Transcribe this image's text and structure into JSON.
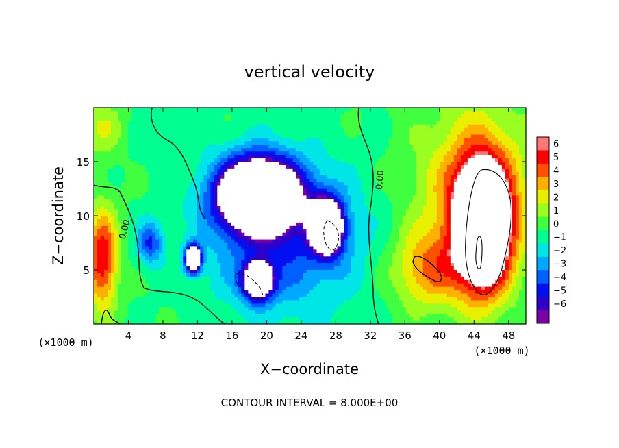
{
  "chart_data": {
    "type": "heatmap",
    "title": "vertical velocity",
    "xlabel": "X−coordinate",
    "ylabel": "Z−coordinate",
    "x_unit_label": "(×1000 m)",
    "x_unit_label_left": "(×1000 m)",
    "xlim": [
      0,
      50
    ],
    "ylim": [
      0,
      20
    ],
    "x_ticks": [
      4,
      8,
      12,
      16,
      20,
      24,
      28,
      32,
      36,
      40,
      44,
      48
    ],
    "y_ticks": [
      5,
      10,
      15
    ],
    "colorbar": {
      "levels": [
        6,
        5,
        4,
        3,
        2,
        1,
        0,
        -1,
        -2,
        -3,
        -4,
        -5,
        -6
      ],
      "labels": [
        "6",
        "5",
        "4",
        "3",
        "2",
        "1",
        "0",
        "−1",
        "−2",
        "−3",
        "−4",
        "−5",
        "−6"
      ],
      "range": [
        -6,
        6
      ]
    },
    "contour_interval_text": "CONTOUR INTERVAL = 8.000E+00",
    "contour_labels": [
      "0.00",
      "0.00"
    ],
    "grid": false,
    "field_components": [
      {
        "x": 19,
        "z": 12,
        "sx": 4.5,
        "sz": 3.2,
        "amp": -14
      },
      {
        "x": 27,
        "z": 9,
        "sx": 1.8,
        "sz": 2.4,
        "amp": -12
      },
      {
        "x": 19,
        "z": 4,
        "sx": 1.6,
        "sz": 1.6,
        "amp": -12
      },
      {
        "x": 11.5,
        "z": 6,
        "sx": 0.9,
        "sz": 1.2,
        "amp": -12
      },
      {
        "x": 6.5,
        "z": 7.5,
        "sx": 1.5,
        "sz": 2.0,
        "amp": -4
      },
      {
        "x": 22,
        "z": 8,
        "sx": 9,
        "sz": 7,
        "amp": -4
      },
      {
        "x": 45,
        "z": 9,
        "sx": 3.0,
        "sz": 5.5,
        "amp": 14
      },
      {
        "x": 44,
        "z": 12,
        "sx": 6.5,
        "sz": 8,
        "amp": 4
      },
      {
        "x": 38.5,
        "z": 5,
        "sx": 4,
        "sz": 3.5,
        "amp": 3.5
      },
      {
        "x": 1,
        "z": 6,
        "sx": 1.7,
        "sz": 4.5,
        "amp": 6
      },
      {
        "x": 8,
        "z": 17,
        "sx": 4,
        "sz": 2.5,
        "amp": -0.7
      },
      {
        "x": 1,
        "z": 18,
        "sx": 2.5,
        "sz": 2.5,
        "amp": 2
      }
    ]
  }
}
